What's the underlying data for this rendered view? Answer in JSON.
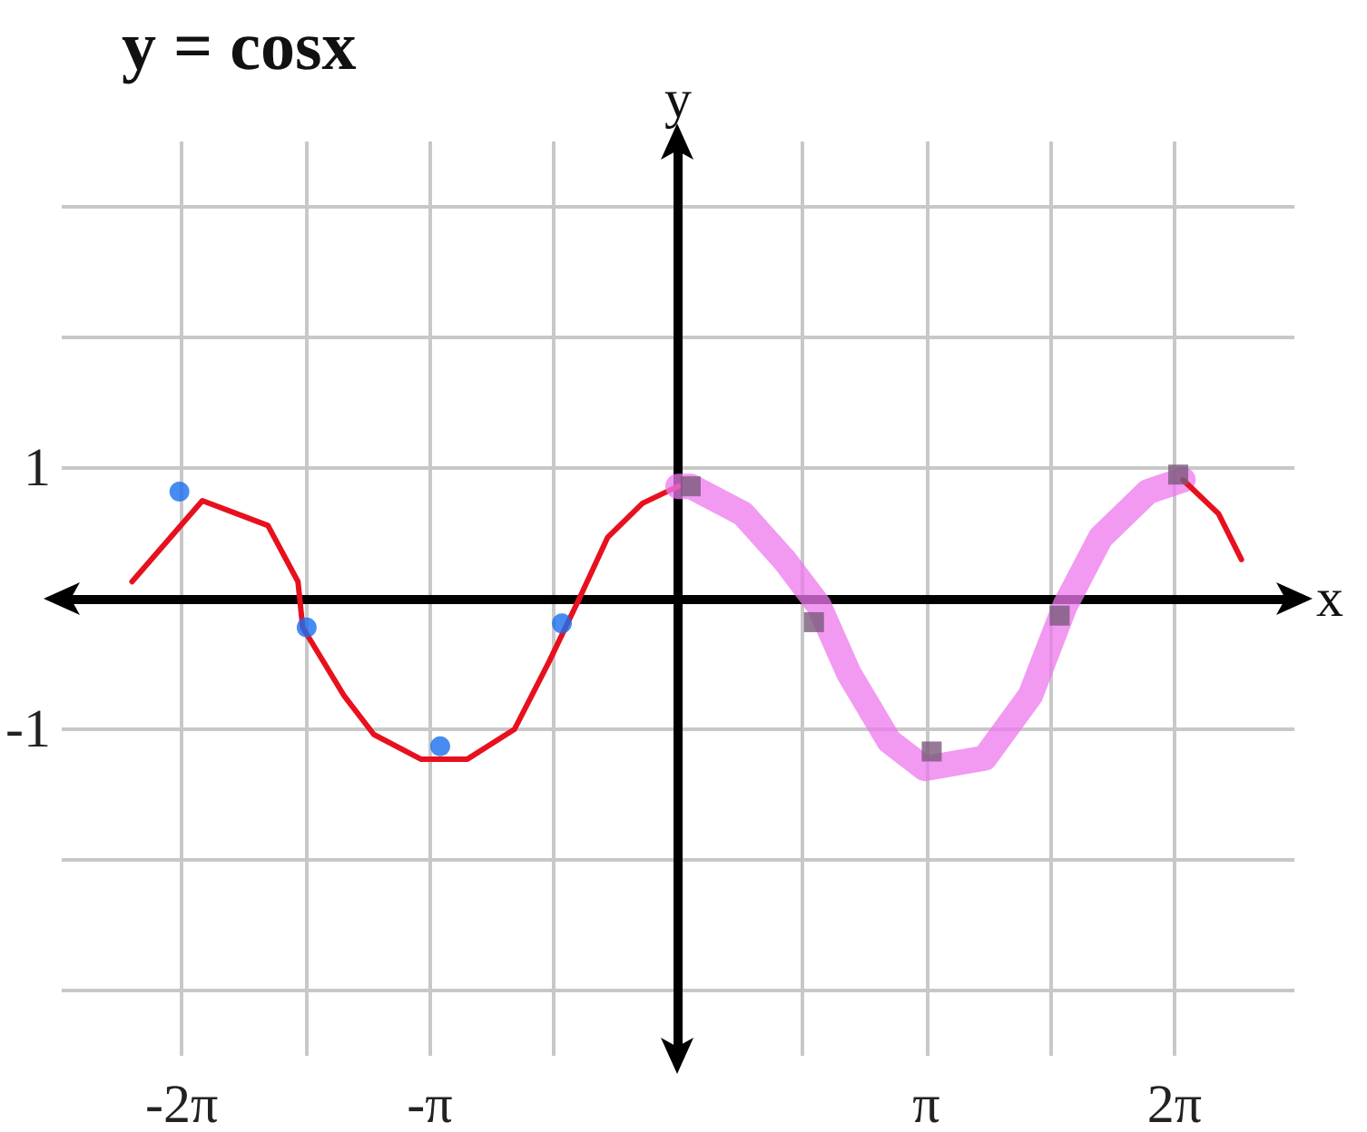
{
  "chart_data": {
    "type": "line",
    "title": "y = cosx",
    "xlabel": "x",
    "ylabel": "y",
    "xlim": [
      -7.8,
      7.8
    ],
    "ylim": [
      -3.5,
      3.5
    ],
    "xticks": [
      {
        "value": -6.283,
        "label": "-2π"
      },
      {
        "value": -4.712,
        "label": null
      },
      {
        "value": -3.142,
        "label": "-π"
      },
      {
        "value": -1.571,
        "label": null
      },
      {
        "value": 0,
        "label": null
      },
      {
        "value": 1.571,
        "label": null
      },
      {
        "value": 3.142,
        "label": "π"
      },
      {
        "value": 4.712,
        "label": null
      },
      {
        "value": 6.283,
        "label": "2π"
      }
    ],
    "yticks": [
      {
        "value": -3,
        "label": null
      },
      {
        "value": -2,
        "label": null
      },
      {
        "value": -1,
        "label": "-1"
      },
      {
        "value": 0,
        "label": null
      },
      {
        "value": 1,
        "label": "1"
      },
      {
        "value": 2,
        "label": null
      },
      {
        "value": 3,
        "label": null
      }
    ],
    "grid": true,
    "series": [
      {
        "color": "#e8101e",
        "marker": "none",
        "x": [
          -6.91,
          -6.02,
          -5.19,
          -4.81,
          -4.75,
          -4.23,
          -3.85,
          -3.25,
          -2.67,
          -2.07,
          -1.63,
          -1.25,
          -0.89,
          -0.45,
          0
        ],
        "values": [
          0.13,
          0.75,
          0.56,
          0.13,
          -0.22,
          -0.74,
          -1.04,
          -1.23,
          -1.23,
          -1.0,
          -0.48,
          0,
          0.47,
          0.73,
          0.86
        ]
      },
      {
        "color": "#ee77ee",
        "marker": "none",
        "x": [
          0,
          0.16,
          0.82,
          1.34,
          1.78,
          2.16,
          2.67,
          3.12,
          3.88,
          4.46,
          4.9,
          5.35,
          5.95,
          6.39
        ],
        "values": [
          0.86,
          0.86,
          0.65,
          0.3,
          -0.05,
          -0.57,
          -1.09,
          -1.3,
          -1.22,
          -0.74,
          -0.05,
          0.47,
          0.82,
          0.91
        ]
      },
      {
        "color": "#e8101e",
        "marker": "none",
        "x": [
          6.39,
          6.84,
          7.13
        ],
        "values": [
          0.91,
          0.65,
          0.3
        ]
      },
      {
        "type": "scatter",
        "color": "#1a6ef0",
        "marker": "circle",
        "x": [
          -6.31,
          -4.7,
          -3.01,
          -1.47
        ],
        "values": [
          0.82,
          -0.22,
          -1.13,
          -0.19
        ]
      },
      {
        "type": "scatter",
        "color": "#7a5a7a",
        "marker": "square",
        "x": [
          0.16,
          1.72,
          3.21,
          4.83,
          6.33
        ],
        "values": [
          0.86,
          -0.18,
          -1.17,
          -0.13,
          0.95
        ]
      }
    ]
  }
}
